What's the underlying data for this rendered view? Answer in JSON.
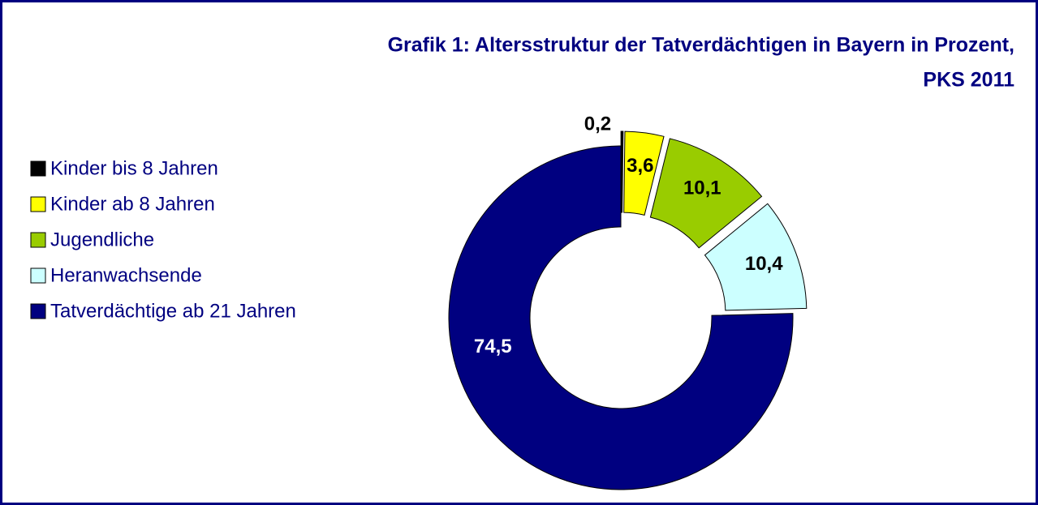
{
  "chart_data": {
    "type": "donut",
    "title": [
      "Grafik 1: Altersstruktur der Tatverdächtigen in Bayern in Prozent,",
      "PKS 2011"
    ],
    "categories": [
      "Kinder bis 8 Jahren",
      "Kinder ab 8 Jahren",
      "Jugendliche",
      "Heranwachsende",
      "Tatverdächtige ab 21 Jahren"
    ],
    "values": [
      0.2,
      3.6,
      10.1,
      10.4,
      74.5
    ],
    "value_labels": [
      "0,2",
      "3,6",
      "10,1",
      "10,4",
      "74,5"
    ],
    "colors": [
      "#000000",
      "#ffff00",
      "#99cc00",
      "#ccffff",
      "#000080"
    ],
    "legend": "left"
  }
}
